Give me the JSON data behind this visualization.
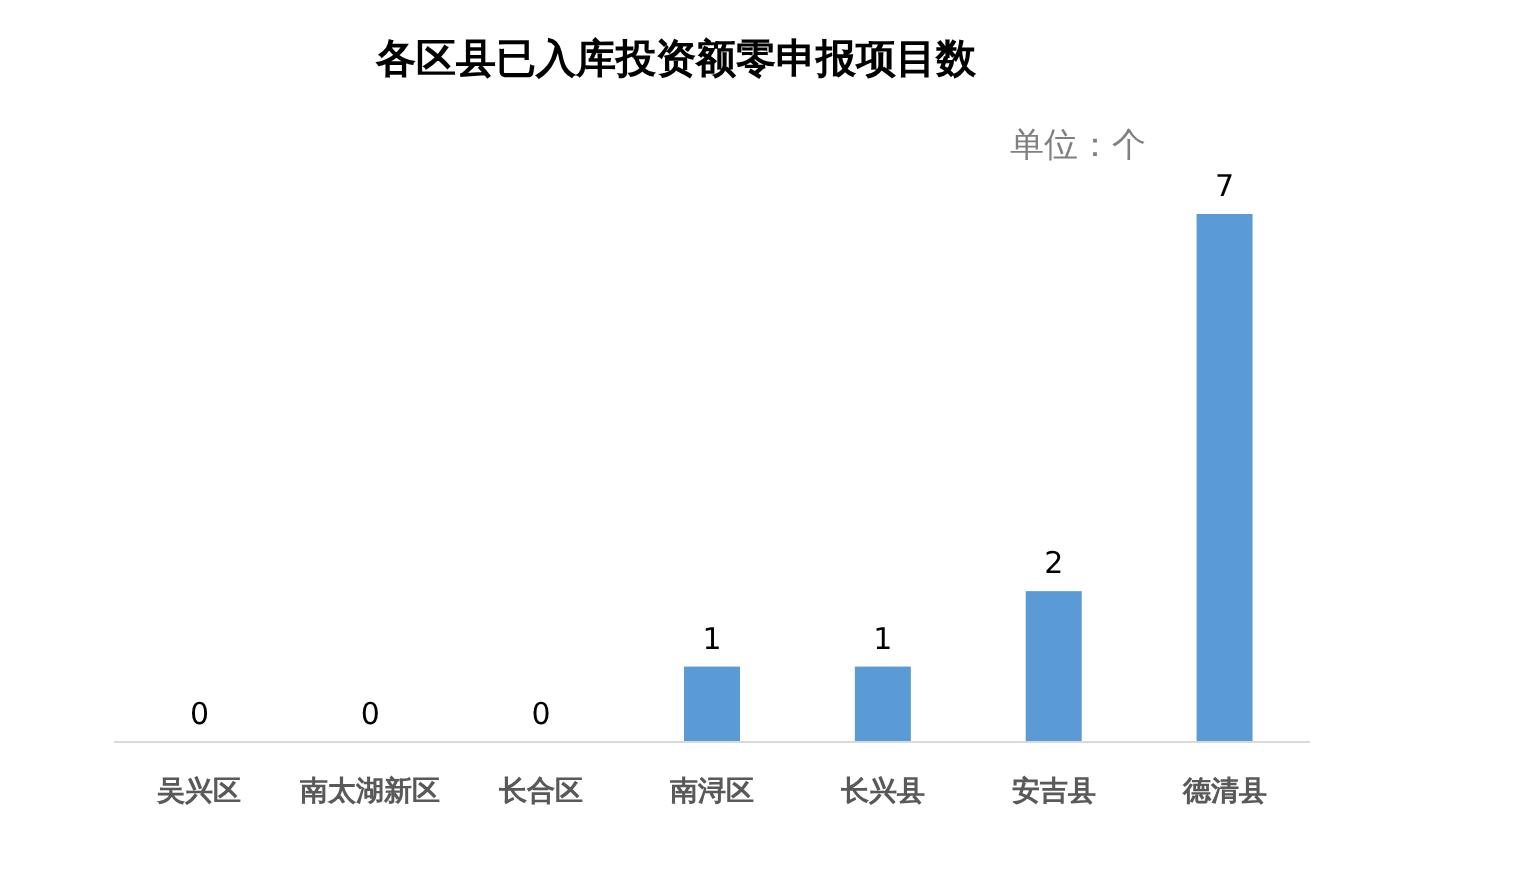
{
  "chart_data": {
    "type": "bar",
    "title": "各区县已入库投资额零申报项目数",
    "categories": [
      "吴兴区",
      "南太湖新区",
      "长合区",
      "南浔区",
      "长兴县",
      "安吉县",
      "德清县"
    ],
    "values": [
      0,
      0,
      0,
      1,
      1,
      2,
      7
    ],
    "color": "#5b9bd5",
    "data_labels": true,
    "annotations": [
      "单位：个"
    ]
  }
}
